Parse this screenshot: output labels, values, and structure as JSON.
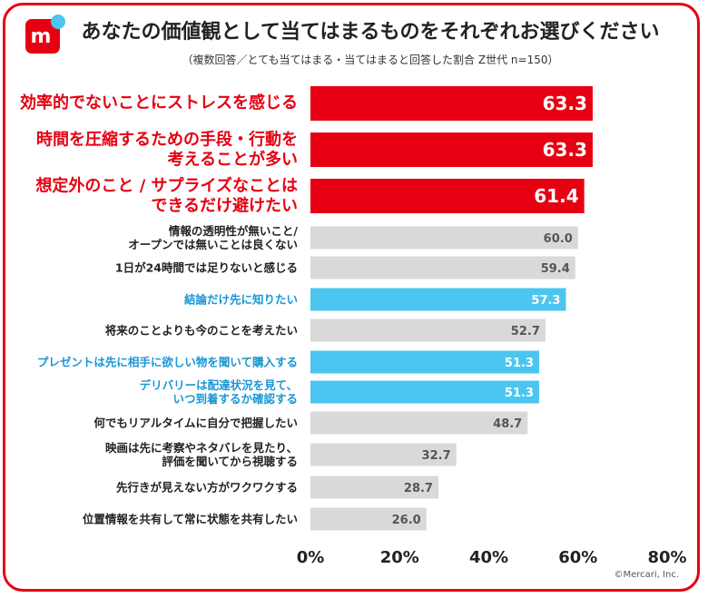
{
  "chart_data": {
    "type": "hbar",
    "title": "あなたの価値観として当てはまるものをそれぞれお選びください",
    "subtitle": "（複数回答／とても当てはまる・当てはまると回答した割合 Z世代 n=150）",
    "source": "©Mercari, Inc.",
    "categories": [
      "効率的でないことにストレスを感じる",
      "時間を圧縮するための手段・行動を\n考えることが多い",
      "想定外のこと / サプライズなことは\nできるだけ避けたい",
      "情報の透明性が無いこと/\nオープンでは無いことは良くない",
      "1日が24時間では足りないと感じる",
      "結論だけ先に知りたい",
      "将来のことよりも今のことを考えたい",
      "プレゼントは先に相手に欲しい物を聞いて購入する",
      "デリバリーは配達状況を見て、\nいつ到着するか確認する",
      "何でもリアルタイムに自分で把握したい",
      "映画は先に考察やネタバレを見たり、\n評価を聞いてから視聴する",
      "先行きが見えない方がワクワクする",
      "位置情報を共有して常に状態を共有したい"
    ],
    "values": [
      63.3,
      63.3,
      61.4,
      60.0,
      59.4,
      57.3,
      52.7,
      51.3,
      51.3,
      48.7,
      32.7,
      28.7,
      26.0
    ],
    "value_labels": [
      "63.3",
      "63.3",
      "61.4",
      "60.0",
      "59.4",
      "57.3",
      "52.7",
      "51.3",
      "51.3",
      "48.7",
      "32.7",
      "28.7",
      "26.0"
    ],
    "colors": [
      "#e60012",
      "#e60012",
      "#e60012",
      "#d9d9d9",
      "#d9d9d9",
      "#4cc6f0",
      "#d9d9d9",
      "#4cc6f0",
      "#4cc6f0",
      "#d9d9d9",
      "#d9d9d9",
      "#d9d9d9",
      "#d9d9d9"
    ],
    "label_colors": [
      "#e60012",
      "#e60012",
      "#e60012",
      "#222222",
      "#222222",
      "#1a96d4",
      "#222222",
      "#1a96d4",
      "#1a96d4",
      "#222222",
      "#222222",
      "#222222",
      "#222222"
    ],
    "xlim": [
      0,
      80
    ],
    "xticks": [
      {
        "value": 0,
        "label": "0%"
      },
      {
        "value": 20,
        "label": "20%"
      },
      {
        "value": 40,
        "label": "40%"
      },
      {
        "value": 60,
        "label": "60%"
      },
      {
        "value": 80,
        "label": "80%"
      }
    ]
  }
}
